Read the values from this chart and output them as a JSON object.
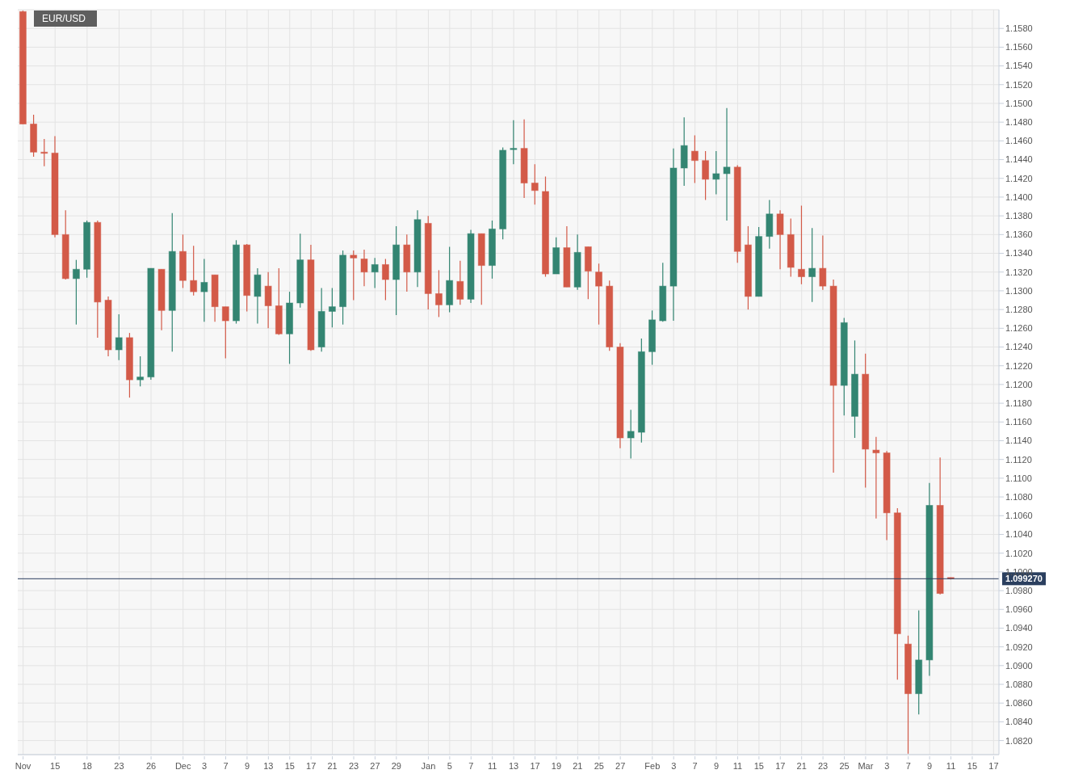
{
  "chart_data": {
    "type": "candlestick",
    "title": "EUR/USD",
    "categories": [
      "Nov",
      null,
      null,
      "15",
      null,
      null,
      "18",
      null,
      null,
      "23",
      null,
      null,
      "26",
      null,
      null,
      "Dec",
      null,
      "3",
      null,
      "7",
      null,
      "9",
      null,
      "13",
      null,
      "15",
      null,
      "17",
      null,
      "21",
      null,
      "23",
      null,
      "27",
      null,
      "29",
      null,
      null,
      "Jan",
      null,
      "5",
      null,
      "7",
      null,
      "11",
      null,
      "13",
      null,
      "17",
      null,
      "19",
      null,
      "21",
      null,
      "25",
      null,
      "27",
      null,
      null,
      "Feb",
      null,
      "3",
      null,
      "7",
      null,
      "9",
      null,
      "11",
      null,
      "15",
      null,
      "17",
      null,
      "21",
      null,
      "23",
      null,
      "25",
      null,
      "Mar",
      null,
      "3",
      null,
      "7",
      null,
      "9",
      null,
      "11",
      null,
      "15",
      null,
      "17"
    ],
    "ohlc": [
      [
        1.1598,
        1.1599,
        1.1478,
        1.1478
      ],
      [
        1.1478,
        1.1488,
        1.1443,
        1.1448
      ],
      [
        1.1448,
        1.1462,
        1.1433,
        1.1447
      ],
      [
        1.1447,
        1.1465,
        1.1357,
        1.136
      ],
      [
        1.136,
        1.1386,
        1.1312,
        1.1313
      ],
      [
        1.1313,
        1.1333,
        1.1264,
        1.1323
      ],
      [
        1.1323,
        1.1375,
        1.1314,
        1.1373
      ],
      [
        1.1373,
        1.1375,
        1.125,
        1.1288
      ],
      [
        1.129,
        1.1294,
        1.123,
        1.1237
      ],
      [
        1.1237,
        1.1275,
        1.1226,
        1.125
      ],
      [
        1.125,
        1.1255,
        1.1186,
        1.1205
      ],
      [
        1.1205,
        1.123,
        1.1198,
        1.1208
      ],
      [
        1.1208,
        1.1324,
        1.1205,
        1.1324
      ],
      [
        1.1323,
        1.1323,
        1.1258,
        1.1279
      ],
      [
        1.1279,
        1.1383,
        1.1235,
        1.1342
      ],
      [
        1.1342,
        1.136,
        1.1303,
        1.1311
      ],
      [
        1.1311,
        1.1348,
        1.1295,
        1.1299
      ],
      [
        1.1299,
        1.1334,
        1.1267,
        1.1309
      ],
      [
        1.1317,
        1.1317,
        1.1267,
        1.1283
      ],
      [
        1.1283,
        1.1283,
        1.1228,
        1.1268
      ],
      [
        1.1268,
        1.1354,
        1.1265,
        1.1349
      ],
      [
        1.1349,
        1.135,
        1.1278,
        1.1295
      ],
      [
        1.1294,
        1.1324,
        1.1265,
        1.1317
      ],
      [
        1.1305,
        1.132,
        1.126,
        1.1284
      ],
      [
        1.1284,
        1.1324,
        1.1253,
        1.1254
      ],
      [
        1.1254,
        1.1299,
        1.1222,
        1.1287
      ],
      [
        1.1287,
        1.1361,
        1.1282,
        1.1333
      ],
      [
        1.1333,
        1.1349,
        1.1236,
        1.1237
      ],
      [
        1.124,
        1.1303,
        1.1235,
        1.1278
      ],
      [
        1.1278,
        1.1303,
        1.1261,
        1.1283
      ],
      [
        1.1283,
        1.1343,
        1.1264,
        1.1338
      ],
      [
        1.1338,
        1.1343,
        1.129,
        1.1335
      ],
      [
        1.1334,
        1.1344,
        1.1305,
        1.132
      ],
      [
        1.132,
        1.1335,
        1.1303,
        1.1328
      ],
      [
        1.1328,
        1.1334,
        1.129,
        1.1312
      ],
      [
        1.1312,
        1.1369,
        1.1274,
        1.1349
      ],
      [
        1.1349,
        1.136,
        1.1299,
        1.132
      ],
      [
        1.132,
        1.1386,
        1.1304,
        1.1376
      ],
      [
        1.1372,
        1.138,
        1.128,
        1.1297
      ],
      [
        1.1297,
        1.1322,
        1.1272,
        1.1285
      ],
      [
        1.1285,
        1.1347,
        1.1277,
        1.1311
      ],
      [
        1.131,
        1.1332,
        1.1285,
        1.1291
      ],
      [
        1.1291,
        1.1365,
        1.1287,
        1.1361
      ],
      [
        1.1361,
        1.1361,
        1.1285,
        1.1327
      ],
      [
        1.1327,
        1.1375,
        1.1313,
        1.1366
      ],
      [
        1.1366,
        1.1453,
        1.1355,
        1.145
      ],
      [
        1.1451,
        1.1482,
        1.1435,
        1.1452
      ],
      [
        1.1452,
        1.1483,
        1.1399,
        1.1415
      ],
      [
        1.1415,
        1.1435,
        1.1392,
        1.1407
      ],
      [
        1.1406,
        1.1422,
        1.1315,
        1.1318
      ],
      [
        1.1318,
        1.1357,
        1.1318,
        1.1346
      ],
      [
        1.1346,
        1.1369,
        1.1304,
        1.1304
      ],
      [
        1.1304,
        1.136,
        1.1301,
        1.1341
      ],
      [
        1.1347,
        1.1347,
        1.1291,
        1.1321
      ],
      [
        1.132,
        1.1329,
        1.1264,
        1.1305
      ],
      [
        1.1305,
        1.1311,
        1.1236,
        1.124
      ],
      [
        1.124,
        1.1244,
        1.1132,
        1.1143
      ],
      [
        1.1143,
        1.1173,
        1.1121,
        1.115
      ],
      [
        1.1149,
        1.1249,
        1.1138,
        1.1235
      ],
      [
        1.1235,
        1.1279,
        1.1221,
        1.1269
      ],
      [
        1.1268,
        1.133,
        1.1267,
        1.1305
      ],
      [
        1.1305,
        1.1452,
        1.1268,
        1.1431
      ],
      [
        1.1431,
        1.1485,
        1.1412,
        1.1455
      ],
      [
        1.1449,
        1.1466,
        1.1415,
        1.1439
      ],
      [
        1.1439,
        1.1449,
        1.1397,
        1.1419
      ],
      [
        1.1419,
        1.1449,
        1.1403,
        1.1425
      ],
      [
        1.1425,
        1.1495,
        1.1375,
        1.1432
      ],
      [
        1.1432,
        1.1434,
        1.133,
        1.1342
      ],
      [
        1.1349,
        1.1369,
        1.128,
        1.1294
      ],
      [
        1.1294,
        1.1368,
        1.1294,
        1.1358
      ],
      [
        1.1358,
        1.1397,
        1.1345,
        1.1382
      ],
      [
        1.1382,
        1.1386,
        1.1323,
        1.136
      ],
      [
        1.136,
        1.1377,
        1.1315,
        1.1325
      ],
      [
        1.1323,
        1.1391,
        1.1307,
        1.1315
      ],
      [
        1.1315,
        1.1367,
        1.1288,
        1.1324
      ],
      [
        1.1324,
        1.1359,
        1.1301,
        1.1305
      ],
      [
        1.1305,
        1.1312,
        1.1106,
        1.1199
      ],
      [
        1.1199,
        1.1271,
        1.1167,
        1.1266
      ],
      [
        1.1166,
        1.1247,
        1.1143,
        1.1211
      ],
      [
        1.1211,
        1.1233,
        1.109,
        1.1131
      ],
      [
        1.113,
        1.1144,
        1.1057,
        1.1127
      ],
      [
        1.1127,
        1.1129,
        1.1034,
        1.1063
      ],
      [
        1.1063,
        1.1068,
        1.0885,
        1.0934
      ],
      [
        1.0923,
        1.0932,
        1.0806,
        1.087
      ],
      [
        1.087,
        1.0959,
        1.0848,
        1.0906
      ],
      [
        1.0906,
        1.1095,
        1.0889,
        1.1071
      ],
      [
        1.1071,
        1.1122,
        1.0976,
        1.0977
      ],
      [
        1.0994,
        1.0994,
        1.0992,
        1.0993
      ],
      null,
      null,
      null,
      null
    ],
    "colors": [
      "#d35a48",
      "#d35a48",
      "#d35a48",
      "#d35a48",
      "#d35a48",
      "#338572",
      "#338572",
      "#d35a48",
      "#d35a48",
      "#338572",
      "#d35a48",
      "#338572",
      "#338572",
      "#d35a48",
      "#338572",
      "#d35a48",
      "#d35a48",
      "#338572",
      "#d35a48",
      "#d35a48",
      "#338572",
      "#d35a48",
      "#338572",
      "#d35a48",
      "#d35a48",
      "#338572",
      "#338572",
      "#d35a48",
      "#338572",
      "#338572",
      "#338572",
      "#d35a48",
      "#d35a48",
      "#338572",
      "#d35a48",
      "#338572",
      "#d35a48",
      "#338572",
      "#d35a48",
      "#d35a48",
      "#338572",
      "#d35a48",
      "#338572",
      "#d35a48",
      "#338572",
      "#338572",
      "#338572",
      "#d35a48",
      "#d35a48",
      "#d35a48",
      "#338572",
      "#d35a48",
      "#338572",
      "#d35a48",
      "#d35a48",
      "#d35a48",
      "#d35a48",
      "#338572",
      "#338572",
      "#338572",
      "#338572",
      "#338572",
      "#338572",
      "#d35a48",
      "#d35a48",
      "#338572",
      "#338572",
      "#d35a48",
      "#d35a48",
      "#338572",
      "#338572",
      "#d35a48",
      "#d35a48",
      "#d35a48",
      "#338572",
      "#d35a48",
      "#d35a48",
      "#338572",
      "#338572",
      "#d35a48",
      "#d35a48",
      "#d35a48",
      "#d35a48",
      "#d35a48",
      "#338572",
      "#338572",
      "#d35a48",
      "#d35a48",
      null,
      null,
      null,
      null
    ],
    "ylim": [
      1.0805,
      1.16
    ],
    "yticks": [
      {
        "value": 1.082,
        "label": "1.0820"
      },
      {
        "value": 1.084,
        "label": "1.0840"
      },
      {
        "value": 1.086,
        "label": "1.0860"
      },
      {
        "value": 1.088,
        "label": "1.0880"
      },
      {
        "value": 1.09,
        "label": "1.0900"
      },
      {
        "value": 1.092,
        "label": "1.0920"
      },
      {
        "value": 1.094,
        "label": "1.0940"
      },
      {
        "value": 1.096,
        "label": "1.0960"
      },
      {
        "value": 1.098,
        "label": "1.0980"
      },
      {
        "value": 1.1,
        "label": "1.1000"
      },
      {
        "value": 1.102,
        "label": "1.1020"
      },
      {
        "value": 1.104,
        "label": "1.1040"
      },
      {
        "value": 1.106,
        "label": "1.1060"
      },
      {
        "value": 1.108,
        "label": "1.1080"
      },
      {
        "value": 1.11,
        "label": "1.1100"
      },
      {
        "value": 1.112,
        "label": "1.1120"
      },
      {
        "value": 1.114,
        "label": "1.1140"
      },
      {
        "value": 1.116,
        "label": "1.1160"
      },
      {
        "value": 1.118,
        "label": "1.1180"
      },
      {
        "value": 1.12,
        "label": "1.1200"
      },
      {
        "value": 1.122,
        "label": "1.1220"
      },
      {
        "value": 1.124,
        "label": "1.1240"
      },
      {
        "value": 1.126,
        "label": "1.1260"
      },
      {
        "value": 1.128,
        "label": "1.1280"
      },
      {
        "value": 1.13,
        "label": "1.1300"
      },
      {
        "value": 1.132,
        "label": "1.1320"
      },
      {
        "value": 1.134,
        "label": "1.1340"
      },
      {
        "value": 1.136,
        "label": "1.1360"
      },
      {
        "value": 1.138,
        "label": "1.1380"
      },
      {
        "value": 1.14,
        "label": "1.1400"
      },
      {
        "value": 1.142,
        "label": "1.1420"
      },
      {
        "value": 1.144,
        "label": "1.1440"
      },
      {
        "value": 1.146,
        "label": "1.1460"
      },
      {
        "value": 1.148,
        "label": "1.1480"
      },
      {
        "value": 1.15,
        "label": "1.1500"
      },
      {
        "value": 1.152,
        "label": "1.1520"
      },
      {
        "value": 1.154,
        "label": "1.1540"
      },
      {
        "value": 1.156,
        "label": "1.1560"
      },
      {
        "value": 1.158,
        "label": "1.1580"
      }
    ],
    "ref_lines": [
      {
        "axis": "y",
        "value": 1.09927,
        "label": "1.099270",
        "color": "#2b3f5f"
      }
    ],
    "grid": true
  }
}
